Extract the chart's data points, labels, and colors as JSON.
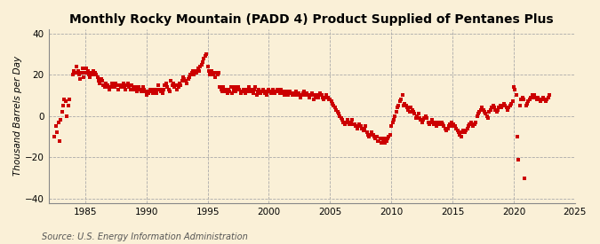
{
  "title": "Monthly Rocky Mountain (PADD 4) Product Supplied of Pentanes Plus",
  "ylabel": "Thousand Barrels per Day",
  "source": "Source: U.S. Energy Information Administration",
  "bg_color": "#FAF0D7",
  "dot_color": "#CC0000",
  "xlim": [
    1982,
    2025
  ],
  "ylim": [
    -42,
    42
  ],
  "yticks": [
    -40,
    -20,
    0,
    20,
    40
  ],
  "xticks": [
    1985,
    1990,
    1995,
    2000,
    2005,
    2010,
    2015,
    2020,
    2025
  ],
  "dot_size": 5,
  "title_fontsize": 10,
  "label_fontsize": 7.5,
  "tick_fontsize": 7.5,
  "source_fontsize": 7,
  "data": {
    "1982.5": -10,
    "1982.6": -5,
    "1982.7": -8,
    "1982.8": -3,
    "1982.9": -12,
    "1983.0": -2,
    "1983.1": 2,
    "1983.2": 5,
    "1983.3": 8,
    "1983.4": 7,
    "1983.5": 0,
    "1983.6": 5,
    "1983.7": 8,
    "1984.0": 20,
    "1984.1": 22,
    "1984.2": 21,
    "1984.3": 24,
    "1984.4": 22,
    "1984.5": 20,
    "1984.6": 18,
    "1984.7": 21,
    "1984.8": 23,
    "1984.9": 19,
    "1985.0": 21,
    "1985.1": 23,
    "1985.2": 22,
    "1985.3": 20,
    "1985.4": 19,
    "1985.5": 21,
    "1985.6": 20,
    "1985.7": 22,
    "1985.8": 21,
    "1985.9": 20,
    "1986.0": 19,
    "1986.1": 17,
    "1986.2": 16,
    "1986.3": 18,
    "1986.4": 17,
    "1986.5": 15,
    "1986.6": 14,
    "1986.7": 16,
    "1986.8": 15,
    "1986.9": 14,
    "1987.0": 13,
    "1987.1": 14,
    "1987.2": 16,
    "1987.3": 15,
    "1987.4": 14,
    "1987.5": 16,
    "1987.6": 15,
    "1987.7": 13,
    "1987.8": 15,
    "1987.9": 14,
    "1988.0": 15,
    "1988.1": 16,
    "1988.2": 14,
    "1988.3": 13,
    "1988.4": 15,
    "1988.5": 16,
    "1988.6": 14,
    "1988.7": 13,
    "1988.8": 15,
    "1988.9": 14,
    "1989.0": 13,
    "1989.1": 14,
    "1989.2": 12,
    "1989.3": 13,
    "1989.4": 14,
    "1989.5": 13,
    "1989.6": 12,
    "1989.7": 14,
    "1989.8": 13,
    "1989.9": 12,
    "1990.0": 10,
    "1990.1": 12,
    "1990.2": 11,
    "1990.3": 13,
    "1990.4": 12,
    "1990.5": 11,
    "1990.6": 13,
    "1990.7": 12,
    "1990.8": 11,
    "1990.9": 13,
    "1991.0": 15,
    "1991.1": 13,
    "1991.2": 12,
    "1991.3": 11,
    "1991.4": 13,
    "1991.5": 15,
    "1991.6": 16,
    "1991.7": 14,
    "1991.8": 13,
    "1991.9": 12,
    "1992.0": 17,
    "1992.1": 15,
    "1992.2": 16,
    "1992.3": 14,
    "1992.4": 15,
    "1992.5": 13,
    "1992.6": 14,
    "1992.7": 16,
    "1992.8": 15,
    "1992.9": 17,
    "1993.0": 19,
    "1993.1": 18,
    "1993.2": 17,
    "1993.3": 16,
    "1993.4": 18,
    "1993.5": 19,
    "1993.6": 20,
    "1993.7": 21,
    "1993.8": 22,
    "1993.9": 20,
    "1994.0": 22,
    "1994.1": 21,
    "1994.2": 23,
    "1994.3": 22,
    "1994.4": 24,
    "1994.5": 25,
    "1994.6": 26,
    "1994.7": 28,
    "1994.8": 29,
    "1994.9": 30,
    "1995.0": 24,
    "1995.1": 22,
    "1995.2": 20,
    "1995.3": 22,
    "1995.4": 21,
    "1995.5": 20,
    "1995.6": 19,
    "1995.7": 21,
    "1995.8": 20,
    "1995.9": 21,
    "1996.0": 14,
    "1996.1": 13,
    "1996.2": 12,
    "1996.3": 14,
    "1996.4": 13,
    "1996.5": 12,
    "1996.6": 11,
    "1996.7": 13,
    "1996.8": 12,
    "1996.9": 14,
    "1997.0": 11,
    "1997.1": 13,
    "1997.2": 14,
    "1997.3": 12,
    "1997.4": 13,
    "1997.5": 14,
    "1997.6": 13,
    "1997.7": 11,
    "1997.8": 12,
    "1997.9": 13,
    "1998.0": 12,
    "1998.1": 11,
    "1998.2": 13,
    "1998.3": 12,
    "1998.4": 14,
    "1998.5": 13,
    "1998.6": 12,
    "1998.7": 11,
    "1998.8": 13,
    "1998.9": 14,
    "1999.0": 10,
    "1999.1": 12,
    "1999.2": 13,
    "1999.3": 11,
    "1999.4": 12,
    "1999.5": 13,
    "1999.6": 12,
    "1999.7": 11,
    "1999.8": 10,
    "1999.9": 12,
    "2000.0": 13,
    "2000.1": 12,
    "2000.2": 11,
    "2000.3": 13,
    "2000.4": 12,
    "2000.5": 11,
    "2000.6": 12,
    "2000.7": 13,
    "2000.8": 12,
    "2000.9": 11,
    "2001.0": 13,
    "2001.1": 12,
    "2001.2": 11,
    "2001.3": 10,
    "2001.4": 12,
    "2001.5": 11,
    "2001.6": 10,
    "2001.7": 12,
    "2001.8": 11,
    "2001.9": 10,
    "2002.0": 10,
    "2002.1": 11,
    "2002.2": 12,
    "2002.3": 10,
    "2002.4": 11,
    "2002.5": 10,
    "2002.6": 9,
    "2002.7": 10,
    "2002.8": 11,
    "2002.9": 12,
    "2003.0": 10,
    "2003.1": 11,
    "2003.2": 10,
    "2003.3": 9,
    "2003.4": 10,
    "2003.5": 11,
    "2003.6": 10,
    "2003.7": 8,
    "2003.8": 9,
    "2003.9": 10,
    "2004.0": 9,
    "2004.1": 10,
    "2004.2": 11,
    "2004.3": 10,
    "2004.4": 9,
    "2004.5": 8,
    "2004.6": 9,
    "2004.7": 10,
    "2004.8": 9,
    "2004.9": 8,
    "2005.0": 8,
    "2005.1": 7,
    "2005.2": 6,
    "2005.3": 5,
    "2005.4": 4,
    "2005.5": 3,
    "2005.6": 2,
    "2005.7": 1,
    "2005.8": 0,
    "2005.9": -1,
    "2006.0": -2,
    "2006.1": -3,
    "2006.2": -4,
    "2006.3": -3,
    "2006.4": -2,
    "2006.5": -3,
    "2006.6": -4,
    "2006.7": -3,
    "2006.8": -2,
    "2006.9": -4,
    "2007.0": -4,
    "2007.1": -5,
    "2007.2": -6,
    "2007.3": -5,
    "2007.4": -4,
    "2007.5": -5,
    "2007.6": -6,
    "2007.7": -7,
    "2007.8": -6,
    "2007.9": -5,
    "2008.0": -8,
    "2008.1": -9,
    "2008.2": -10,
    "2008.3": -9,
    "2008.4": -8,
    "2008.5": -9,
    "2008.6": -10,
    "2008.7": -11,
    "2008.8": -10,
    "2008.9": -12,
    "2009.0": -12,
    "2009.1": -11,
    "2009.2": -13,
    "2009.3": -12,
    "2009.4": -11,
    "2009.5": -13,
    "2009.6": -12,
    "2009.7": -11,
    "2009.8": -10,
    "2009.9": -9,
    "2010.0": -5,
    "2010.1": -3,
    "2010.2": -2,
    "2010.3": 0,
    "2010.4": 2,
    "2010.5": 4,
    "2010.6": 5,
    "2010.7": 7,
    "2010.8": 8,
    "2010.9": 10,
    "2011.0": 5,
    "2011.1": 6,
    "2011.2": 5,
    "2011.3": 4,
    "2011.4": 3,
    "2011.5": 2,
    "2011.6": 4,
    "2011.7": 3,
    "2011.8": 2,
    "2011.9": 1,
    "2012.0": -1,
    "2012.1": 0,
    "2012.2": 1,
    "2012.3": -1,
    "2012.4": -2,
    "2012.5": -3,
    "2012.6": -2,
    "2012.7": -1,
    "2012.8": 0,
    "2012.9": -1,
    "2013.0": -3,
    "2013.1": -4,
    "2013.2": -3,
    "2013.3": -2,
    "2013.4": -3,
    "2013.5": -4,
    "2013.6": -3,
    "2013.7": -5,
    "2013.8": -4,
    "2013.9": -3,
    "2014.0": -4,
    "2014.1": -3,
    "2014.2": -4,
    "2014.3": -5,
    "2014.4": -6,
    "2014.5": -7,
    "2014.6": -6,
    "2014.7": -5,
    "2014.8": -4,
    "2014.9": -3,
    "2015.0": -5,
    "2015.1": -4,
    "2015.2": -5,
    "2015.3": -6,
    "2015.4": -7,
    "2015.5": -8,
    "2015.6": -9,
    "2015.7": -10,
    "2015.8": -8,
    "2015.9": -7,
    "2016.0": -8,
    "2016.1": -7,
    "2016.2": -6,
    "2016.3": -5,
    "2016.4": -4,
    "2016.5": -3,
    "2016.6": -4,
    "2016.7": -5,
    "2016.8": -4,
    "2016.9": -3,
    "2017.0": 0,
    "2017.1": 1,
    "2017.2": 2,
    "2017.3": 3,
    "2017.4": 4,
    "2017.5": 3,
    "2017.6": 2,
    "2017.7": 1,
    "2017.8": 0,
    "2017.9": -1,
    "2018.0": 2,
    "2018.1": 3,
    "2018.2": 4,
    "2018.3": 5,
    "2018.4": 4,
    "2018.5": 3,
    "2018.6": 2,
    "2018.7": 3,
    "2018.8": 4,
    "2018.9": 5,
    "2019.0": 4,
    "2019.1": 5,
    "2019.2": 6,
    "2019.3": 5,
    "2019.4": 4,
    "2019.5": 3,
    "2019.6": 4,
    "2019.7": 5,
    "2019.8": 6,
    "2019.9": 7,
    "2020.0": 14,
    "2020.1": 13,
    "2020.2": 10,
    "2020.3": -10,
    "2020.4": -21,
    "2020.5": 5,
    "2020.6": 8,
    "2020.7": 9,
    "2020.8": 8,
    "2020.9": -30,
    "2021.0": 5,
    "2021.1": 6,
    "2021.2": 7,
    "2021.3": 8,
    "2021.4": 9,
    "2021.5": 10,
    "2021.6": 9,
    "2021.7": 10,
    "2021.8": 9,
    "2021.9": 8,
    "2022.0": 9,
    "2022.1": 8,
    "2022.2": 7,
    "2022.3": 8,
    "2022.4": 9,
    "2022.5": 8,
    "2022.6": 7,
    "2022.7": 8,
    "2022.8": 9,
    "2022.9": 10
  }
}
